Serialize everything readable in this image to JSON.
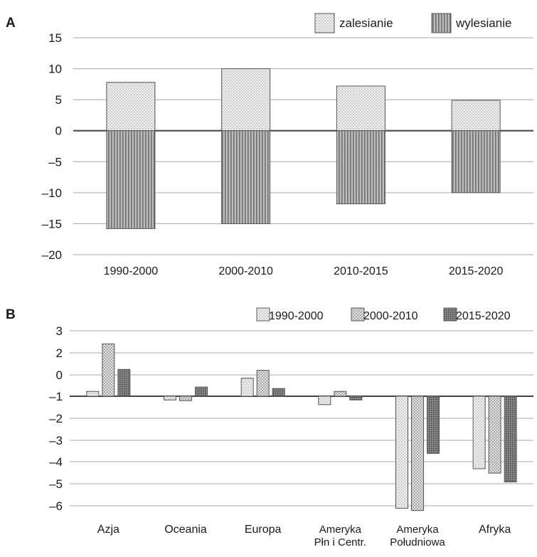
{
  "chart_data": [
    {
      "panel_label": "A",
      "type": "bar",
      "stacked": true,
      "categories": [
        "1990-2000",
        "2000-2010",
        "2010-2015",
        "2015-2020"
      ],
      "series": [
        {
          "name": "zalesianie",
          "values": [
            7.8,
            10.0,
            7.2,
            4.9
          ],
          "pattern": "dots"
        },
        {
          "name": "wylesianie",
          "values": [
            -15.8,
            -15.0,
            -11.8,
            -10.0
          ],
          "pattern": "vertical-stripes"
        }
      ],
      "y_ticks": [
        "15",
        "10",
        "5",
        "0",
        "–5",
        "–10",
        "–15",
        "–20"
      ],
      "ylim": [
        -20,
        15
      ],
      "grid": true,
      "legend_position": "top-right"
    },
    {
      "panel_label": "B",
      "type": "bar",
      "categories": [
        "Azja",
        "Oceania",
        "Europa",
        "Ameryka Pln i Centr.",
        "Ameryka Południowa",
        "Afryka"
      ],
      "category_lines": [
        [
          "Azja"
        ],
        [
          "Oceania"
        ],
        [
          "Europa"
        ],
        [
          "Ameryka",
          "Płn i Centr."
        ],
        [
          "Ameryka",
          "Południowa"
        ],
        [
          "Afryka"
        ]
      ],
      "series": [
        {
          "name": "1990-2000",
          "values": [
            0.22,
            -0.17,
            0.82,
            -0.38,
            -5.1,
            -3.3
          ],
          "pattern": "dots"
        },
        {
          "name": "2000-2010",
          "values": [
            2.38,
            -0.2,
            1.18,
            0.22,
            -5.2,
            -3.5
          ],
          "pattern": "checker"
        },
        {
          "name": "2015-2020",
          "values": [
            1.22,
            0.42,
            0.35,
            -0.17,
            -2.6,
            -3.9
          ],
          "pattern": "dense"
        }
      ],
      "y_ticks": [
        "3",
        "2",
        "0",
        "–1",
        "–2",
        "–3",
        "–4",
        "–5",
        "–6"
      ],
      "ylim": [
        -6,
        3
      ],
      "grid": true,
      "legend_position": "top-right"
    }
  ]
}
